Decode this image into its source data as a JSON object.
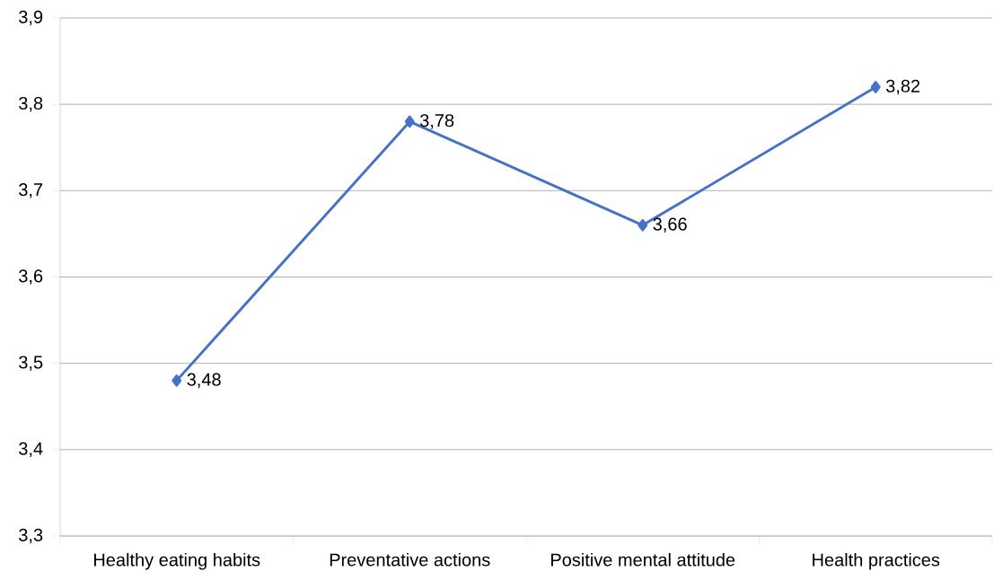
{
  "chart_data": {
    "type": "line",
    "categories": [
      "Healthy eating habits",
      "Preventative actions",
      "Positive mental attitude",
      "Health practices"
    ],
    "series": [
      {
        "color": "#4472c4",
        "values": [
          3.48,
          3.78,
          3.66,
          3.82
        ],
        "value_labels": [
          "3,48",
          "3,78",
          "3,66",
          "3,82"
        ]
      }
    ],
    "ylim": [
      3.3,
      3.9
    ],
    "yticks": [
      {
        "value": 3.3,
        "label": "3,3"
      },
      {
        "value": 3.4,
        "label": "3,4"
      },
      {
        "value": 3.5,
        "label": "3,5"
      },
      {
        "value": 3.6,
        "label": "3,6"
      },
      {
        "value": 3.7,
        "label": "3,7"
      },
      {
        "value": 3.8,
        "label": "3,8"
      },
      {
        "value": 3.9,
        "label": "3,9"
      }
    ],
    "grid": "y",
    "marker": "diamond",
    "line_style": "solid"
  }
}
